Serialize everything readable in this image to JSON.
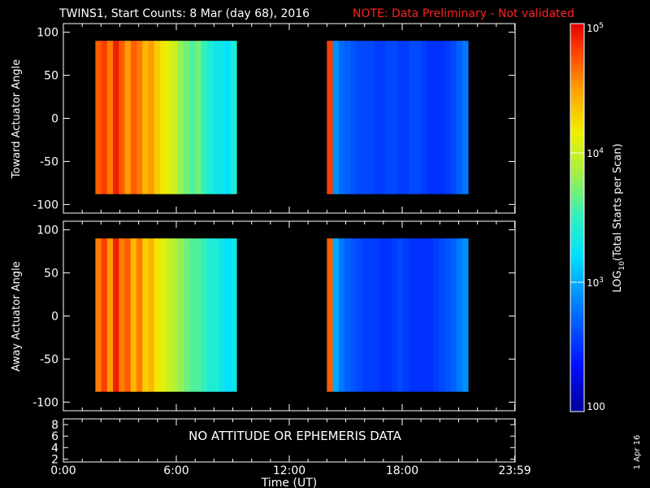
{
  "title": {
    "main": "TWINS1, Start Counts:  8 Mar (day  68), 2016",
    "note": "NOTE: Data Preliminary - Not validated",
    "note_color": "#ff2020"
  },
  "footer_date": "1 Apr 16",
  "chart_data": [
    {
      "type": "heatmap",
      "ylabel": "Toward Actuator Angle",
      "xlim": [
        0,
        24
      ],
      "ylim": [
        -110,
        110
      ],
      "yticks": [
        100,
        50,
        0,
        -50,
        -100
      ],
      "ytick_labels": [
        "100",
        "50",
        "0",
        "-50",
        "-100"
      ],
      "data_blocks": [
        {
          "time_range_h": [
            1.7,
            9.2
          ],
          "angle_range": [
            -88,
            90
          ],
          "log_counts_by_time": [
            4.7,
            4.8,
            4.6,
            4.9,
            4.7,
            4.5,
            4.7,
            4.6,
            4.4,
            4.5,
            4.3,
            4.2,
            4.1,
            4.0,
            3.8,
            3.7,
            3.6,
            3.7,
            3.5,
            3.4,
            3.3,
            3.3,
            3.2,
            3.4
          ]
        },
        {
          "time_range_h": [
            14.0,
            21.5
          ],
          "angle_range": [
            -88,
            90
          ],
          "log_counts_by_time": [
            4.8,
            2.9,
            2.75,
            2.7,
            2.65,
            2.6,
            2.6,
            2.6,
            2.55,
            2.55,
            2.6,
            2.6,
            2.55,
            2.55,
            2.6,
            2.6,
            2.55,
            2.5,
            2.5,
            2.5,
            2.55,
            2.6,
            2.7,
            2.8
          ]
        }
      ]
    },
    {
      "type": "heatmap",
      "ylabel": "Away Actuator Angle",
      "xlim": [
        0,
        24
      ],
      "ylim": [
        -110,
        110
      ],
      "yticks": [
        100,
        50,
        0,
        -50,
        -100
      ],
      "ytick_labels": [
        "100",
        "50",
        "0",
        "-50",
        "-100"
      ],
      "data_blocks": [
        {
          "time_range_h": [
            1.7,
            9.2
          ],
          "angle_range": [
            -88,
            90
          ],
          "log_counts_by_time": [
            4.6,
            4.8,
            4.5,
            4.9,
            4.6,
            4.7,
            4.4,
            4.6,
            4.3,
            4.4,
            4.2,
            4.1,
            4.0,
            3.9,
            3.8,
            3.7,
            3.6,
            3.6,
            3.5,
            3.4,
            3.4,
            3.3,
            3.2,
            3.3
          ]
        },
        {
          "time_range_h": [
            14.0,
            21.5
          ],
          "angle_range": [
            -88,
            90
          ],
          "log_counts_by_time": [
            4.7,
            3.0,
            2.8,
            2.7,
            2.65,
            2.6,
            2.55,
            2.55,
            2.55,
            2.5,
            2.5,
            2.55,
            2.6,
            2.55,
            2.5,
            2.5,
            2.5,
            2.5,
            2.55,
            2.6,
            2.65,
            2.7,
            2.8,
            2.9
          ]
        }
      ]
    },
    {
      "type": "line",
      "yticks": [
        8,
        6,
        4,
        2
      ],
      "ytick_labels": [
        "8",
        "6",
        "4",
        "2"
      ],
      "message": "NO ATTITUDE OR EPHEMERIS DATA",
      "xlabel": "Time (UT)",
      "xticks_h": [
        0,
        6,
        12,
        18,
        23.98
      ],
      "xtick_labels": [
        "0:00",
        "6:00",
        "12:00",
        "18:00",
        "23:59"
      ]
    }
  ],
  "colorbar": {
    "label": "LOG10(Total Starts per Scan)",
    "label_text": "LOG",
    "label_sub": "10",
    "label_rest": "(Total Starts per Scan)",
    "log_range": [
      2,
      5
    ],
    "ticks_log": [
      5,
      4,
      3,
      2
    ],
    "tick_labels": [
      "10",
      "10",
      "10",
      "100"
    ],
    "tick_exponents": [
      "5",
      "4",
      "3",
      ""
    ]
  }
}
